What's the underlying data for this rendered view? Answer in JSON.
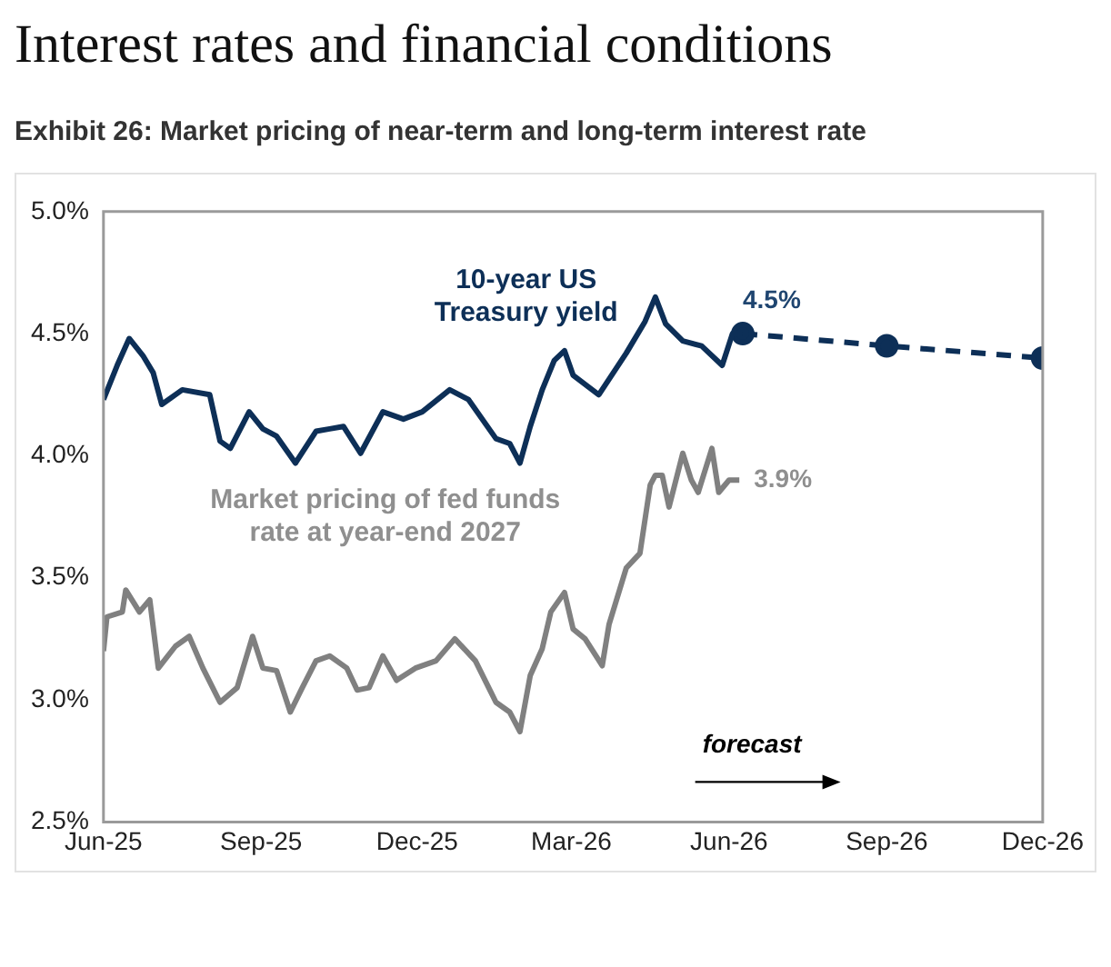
{
  "chart_data": {
    "type": "line",
    "title": "Interest rates and financial conditions",
    "subtitle": "Exhibit 26: Market pricing of near-term and long-term interest rate",
    "xlim": [
      "2025-06-01",
      "2026-12-01"
    ],
    "xticks": [
      {
        "value": "2025-06-01",
        "label": "Jun-25"
      },
      {
        "value": "2025-09-01",
        "label": "Sep-25"
      },
      {
        "value": "2025-12-01",
        "label": "Dec-25"
      },
      {
        "value": "2026-03-01",
        "label": "Mar-26"
      },
      {
        "value": "2026-06-01",
        "label": "Jun-26"
      },
      {
        "value": "2026-09-01",
        "label": "Sep-26"
      },
      {
        "value": "2026-12-01",
        "label": "Dec-26"
      }
    ],
    "ylim": [
      2.5,
      5
    ],
    "yticks": [
      {
        "value": 2.5,
        "label": "2.5%"
      },
      {
        "value": 3,
        "label": "3.0%"
      },
      {
        "value": 3.5,
        "label": "3.5%"
      },
      {
        "value": 4,
        "label": "4.0%"
      },
      {
        "value": 4.5,
        "label": "4.5%"
      },
      {
        "value": 5,
        "label": "5.0%"
      }
    ],
    "grid": false,
    "legend": false,
    "marker": "none",
    "line_style": "solid",
    "series": [
      {
        "name": "10-year US Treasury yield",
        "color": "#0d2f57",
        "x": [
          "2025-06-01",
          "2025-06-09",
          "2025-06-16",
          "2025-06-24",
          "2025-06-30",
          "2025-07-05",
          "2025-07-17",
          "2025-08-02",
          "2025-08-08",
          "2025-08-14",
          "2025-08-25",
          "2025-09-02",
          "2025-09-10",
          "2025-09-21",
          "2025-10-03",
          "2025-10-11",
          "2025-10-19",
          "2025-10-29",
          "2025-11-11",
          "2025-11-23",
          "2025-12-04",
          "2025-12-20",
          "2025-12-31",
          "2026-01-16",
          "2026-01-24",
          "2026-01-30",
          "2026-02-05",
          "2026-02-12",
          "2026-02-19",
          "2026-02-25",
          "2026-03-02",
          "2026-03-17",
          "2026-04-02",
          "2026-04-13",
          "2026-04-19",
          "2026-04-25",
          "2026-05-05",
          "2026-05-16",
          "2026-05-28",
          "2026-06-03",
          "2026-06-09"
        ],
        "values": [
          4.23,
          4.37,
          4.48,
          4.41,
          4.34,
          4.21,
          4.27,
          4.25,
          4.06,
          4.03,
          4.18,
          4.11,
          4.08,
          3.97,
          4.1,
          4.11,
          4.12,
          4.01,
          4.18,
          4.15,
          4.18,
          4.27,
          4.23,
          4.07,
          4.05,
          3.97,
          4.12,
          4.27,
          4.39,
          4.43,
          4.33,
          4.25,
          4.42,
          4.55,
          4.65,
          4.54,
          4.47,
          4.45,
          4.37,
          4.5,
          4.5
        ]
      },
      {
        "color": "#0d2f57",
        "x": [
          "2026-06-09",
          "2026-09-01",
          "2026-12-01"
        ],
        "values": [
          4.5,
          4.45,
          4.4
        ],
        "line_style": "dashed",
        "marker": "circle"
      },
      {
        "name": "Market pricing of fed funds rate at year-end 2027",
        "color": "#808080",
        "x": [
          "2025-06-01",
          "2025-06-03",
          "2025-06-12",
          "2025-06-14",
          "2025-06-22",
          "2025-06-28",
          "2025-07-03",
          "2025-07-13",
          "2025-07-21",
          "2025-07-29",
          "2025-08-08",
          "2025-08-18",
          "2025-08-27",
          "2025-09-02",
          "2025-09-10",
          "2025-09-18",
          "2025-09-25",
          "2025-10-03",
          "2025-10-11",
          "2025-10-21",
          "2025-10-27",
          "2025-11-03",
          "2025-11-11",
          "2025-11-19",
          "2025-11-30",
          "2025-12-12",
          "2025-12-23",
          "2026-01-04",
          "2026-01-16",
          "2026-01-24",
          "2026-01-30",
          "2026-02-05",
          "2026-02-12",
          "2026-02-17",
          "2026-02-25",
          "2026-03-02",
          "2026-03-09",
          "2026-03-19",
          "2026-03-23",
          "2026-04-02",
          "2026-04-10",
          "2026-04-16",
          "2026-04-19",
          "2026-04-23",
          "2026-04-27",
          "2026-05-05",
          "2026-05-10",
          "2026-05-14",
          "2026-05-22",
          "2026-05-26",
          "2026-06-01",
          "2026-06-07"
        ],
        "values": [
          3.2,
          3.34,
          3.36,
          3.45,
          3.36,
          3.41,
          3.13,
          3.22,
          3.26,
          3.13,
          2.99,
          3.05,
          3.26,
          3.13,
          3.12,
          2.95,
          3.05,
          3.16,
          3.18,
          3.13,
          3.04,
          3.05,
          3.18,
          3.08,
          3.13,
          3.16,
          3.25,
          3.16,
          2.99,
          2.95,
          2.87,
          3.1,
          3.21,
          3.36,
          3.44,
          3.29,
          3.25,
          3.14,
          3.31,
          3.54,
          3.6,
          3.88,
          3.92,
          3.92,
          3.79,
          4.01,
          3.9,
          3.85,
          4.03,
          3.85,
          3.9,
          3.9
        ]
      }
    ],
    "annotations": [
      {
        "text": "4.5%",
        "x": "2026-06-09",
        "y": 4.5
      },
      {
        "text": "3.9%",
        "x": "2026-06-07",
        "y": 3.9
      },
      "forecast"
    ]
  }
}
